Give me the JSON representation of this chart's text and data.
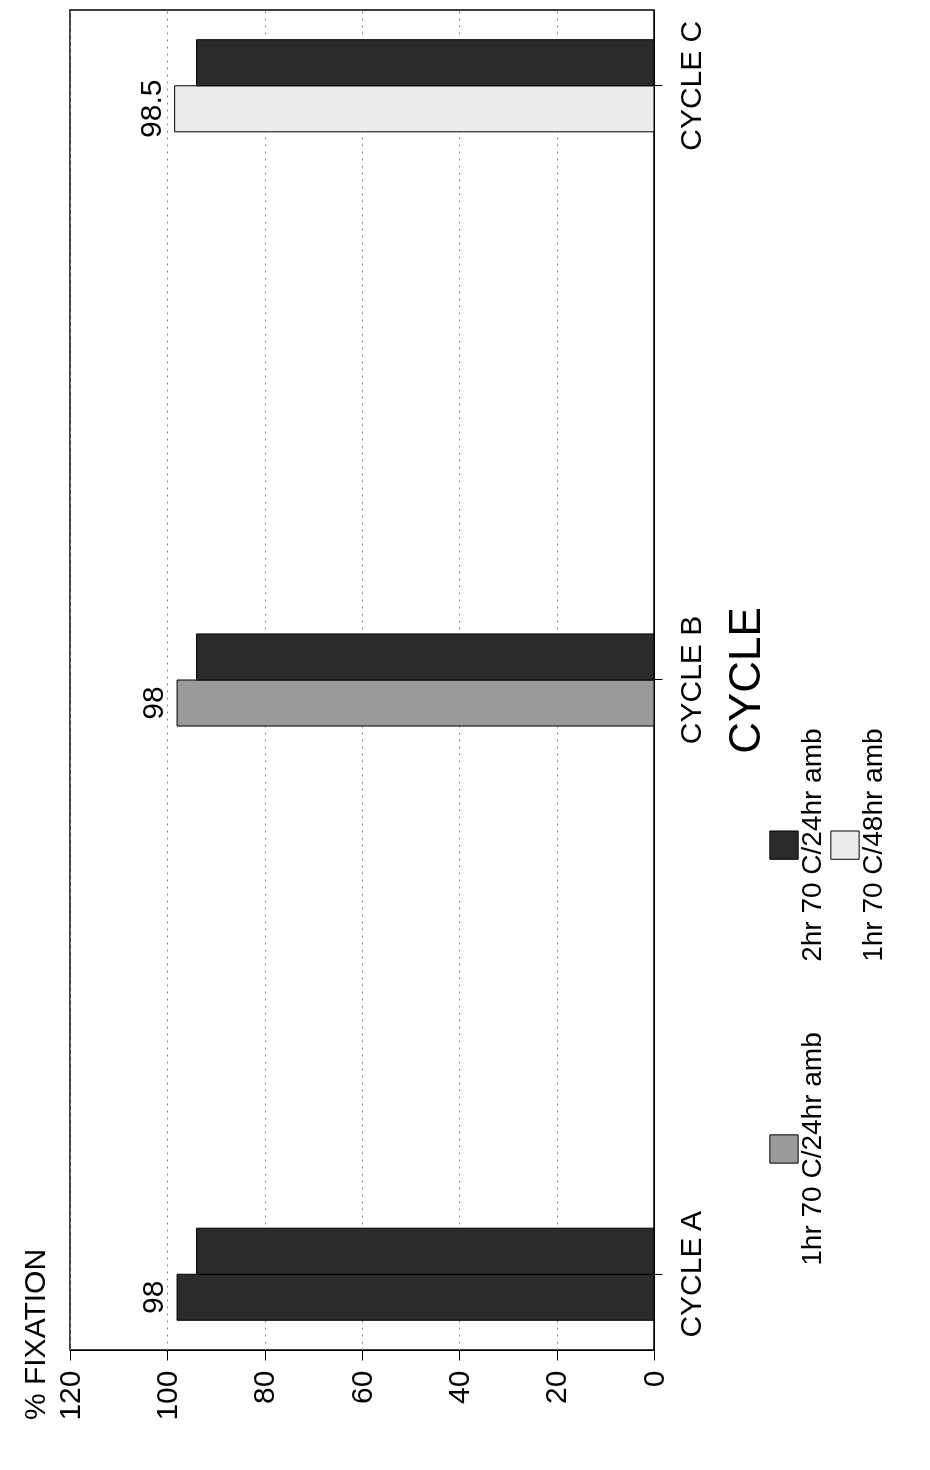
{
  "chart_data": {
    "type": "bar",
    "orientation": "horizontal",
    "annotations": [
      "% FIXATION"
    ],
    "ylabel": "CYCLE",
    "categories": [
      "CYCLE C",
      "CYCLE B",
      "CYCLE A"
    ],
    "series": [
      {
        "name": "2hr 70 C/24hr amb",
        "color": "#2b2b2b",
        "values": [
          null,
          null,
          98
        ],
        "value_labels": [
          null,
          null,
          "98"
        ]
      },
      {
        "name": "1hr 70 C/48hr amb",
        "color": "#ececec",
        "values": [
          98.5,
          null,
          null
        ],
        "value_labels": [
          "98.5",
          null,
          null
        ]
      },
      {
        "name": "1hr 70 C/24hr amb",
        "color": "#9a9a9a",
        "values": [
          null,
          98,
          null
        ],
        "value_labels": [
          null,
          "98",
          null
        ]
      },
      {
        "color": "#2b2b2b",
        "values": [
          94,
          94,
          94
        ]
      }
    ],
    "xlim": [
      120,
      0
    ],
    "xticks": [
      120,
      100,
      80,
      60,
      40,
      20,
      0
    ],
    "grid": "x",
    "legend": "right"
  }
}
